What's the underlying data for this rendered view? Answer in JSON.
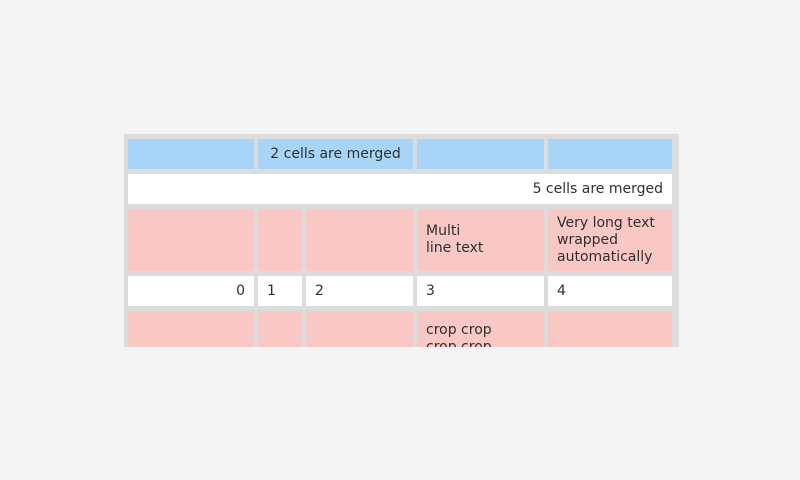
{
  "page": {
    "background": "#f4f4f4"
  },
  "table": {
    "colors": {
      "cell_blue": "#a7d5f7",
      "cell_pink": "#f9c8c5",
      "cell_white": "#ffffff",
      "table_border": "#dcdcdc",
      "text": "#2f2f2f"
    },
    "rows": [
      {
        "type": "header-blue",
        "cells": [
          {
            "text": "",
            "span": 1
          },
          {
            "text": "2 cells are merged",
            "span": 2,
            "align": "center"
          },
          {
            "text": "",
            "span": 1
          },
          {
            "text": "",
            "span": 1
          }
        ]
      },
      {
        "type": "white",
        "cells": [
          {
            "text": "5 cells are merged",
            "span": 5,
            "align": "right"
          }
        ]
      },
      {
        "type": "pink",
        "cells": [
          {
            "text": "",
            "span": 1
          },
          {
            "text": "",
            "span": 1
          },
          {
            "text": "",
            "span": 1
          },
          {
            "text": "Multi\nline text",
            "span": 1,
            "align": "left"
          },
          {
            "text": "Very long text\nwrapped\nautomatically",
            "span": 1,
            "align": "left"
          }
        ]
      },
      {
        "type": "white",
        "cells": [
          {
            "text": "0",
            "span": 1,
            "align": "right"
          },
          {
            "text": "1",
            "span": 1,
            "align": "left"
          },
          {
            "text": "2",
            "span": 1,
            "align": "left"
          },
          {
            "text": "3",
            "span": 1,
            "align": "left"
          },
          {
            "text": "4",
            "span": 1,
            "align": "left"
          }
        ]
      },
      {
        "type": "pink-cropped",
        "cells": [
          {
            "text": "",
            "span": 1
          },
          {
            "text": "",
            "span": 1
          },
          {
            "text": "",
            "span": 1
          },
          {
            "text": "crop crop\ncrop crop",
            "span": 1,
            "align": "left"
          },
          {
            "text": "",
            "span": 1
          }
        ]
      }
    ]
  }
}
